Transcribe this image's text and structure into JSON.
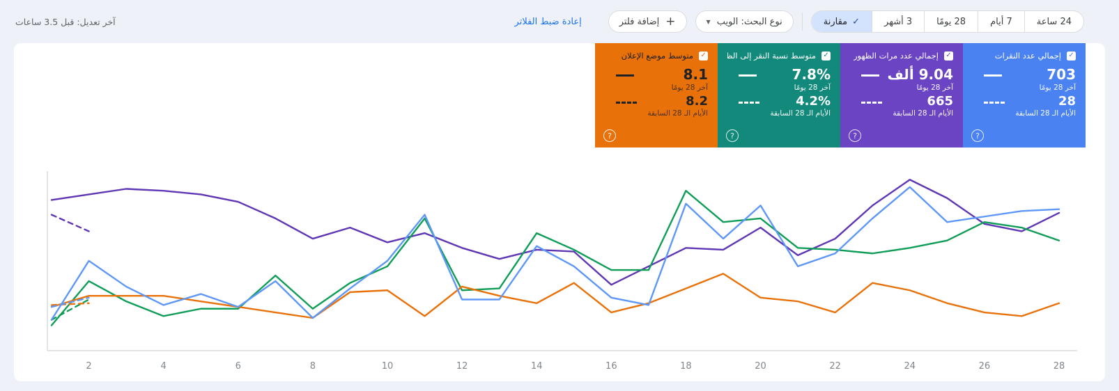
{
  "topbar": {
    "last_modified": "آخر تعديل: قبل 3.5 ساعات",
    "reset_filters_label": "إعادة ضبط الفلاتر",
    "add_filter": {
      "icon": "+",
      "label": "إضافة فلتر"
    },
    "search_type": {
      "label": "نوع البحث: الويب",
      "caret": "▼"
    },
    "date_range_tabs": [
      {
        "label": "24 ساعة",
        "selected": false
      },
      {
        "label": "7 أيام",
        "selected": false
      },
      {
        "label": "28 يومًا",
        "selected": false
      },
      {
        "label": "3 أشهر",
        "selected": false
      },
      {
        "label": "مقارنة",
        "selected": true,
        "check_glyph": "✓"
      }
    ]
  },
  "cards": [
    {
      "metric": "total-clicks",
      "title": "إجمالي عدد النقرات",
      "color": "#4a82f1",
      "checked": true,
      "current": {
        "value": "703",
        "label": "آخر 28 يومًا"
      },
      "previous": {
        "value": "28",
        "label": "الأيام الـ 28 السابقة"
      },
      "help_glyph": "?"
    },
    {
      "metric": "total-impressions",
      "title": "إجمالي عدد مرات الظهور",
      "color": "#6a44c3",
      "checked": true,
      "current": {
        "value": "9.04 ألف",
        "label": "آخر 28 يومًا"
      },
      "previous": {
        "value": "665",
        "label": "الأيام الـ 28 السابقة"
      },
      "help_glyph": "?"
    },
    {
      "metric": "average-ctr",
      "title": "متوسط نسبة النقر إلى الظهور",
      "color": "#12897a",
      "checked": true,
      "current": {
        "value": "7.8%",
        "label": "آخر 28 يومًا"
      },
      "previous": {
        "value": "4.2%",
        "label": "الأيام الـ 28 السابقة"
      },
      "help_glyph": "?"
    },
    {
      "metric": "average-position",
      "title": "متوسط موضع الإعلان",
      "color": "#e8710a",
      "checked": true,
      "dark_text": true,
      "current": {
        "value": "8.1",
        "label": "آخر 28 يومًا"
      },
      "previous": {
        "value": "8.2",
        "label": "الأيام الـ 28 السابقة"
      },
      "help_glyph": "?"
    }
  ],
  "chart_data": {
    "type": "line",
    "days": 28,
    "x_range": [
      1,
      28
    ],
    "x_tick_labels": [
      2,
      4,
      6,
      8,
      10,
      12,
      14,
      16,
      18,
      20,
      22,
      24,
      26,
      28
    ],
    "y_axis": "hidden - no tick labels shown in UI",
    "value_scale": "estimated percent of plot height (0 = bottom axis, 100 = top)",
    "grid": "off",
    "legend": "metric cards act as legend",
    "series": [
      {
        "name": "إجمالي عدد مرات الظهور — آخر 28 يومًا",
        "color": "#5f36b3",
        "style": "solid",
        "values": [
          84,
          87,
          90,
          89,
          87,
          83,
          74,
          63,
          69,
          61,
          66,
          58,
          52,
          57,
          56,
          38,
          48,
          58,
          57,
          69,
          54,
          63,
          81,
          95,
          85,
          71,
          67,
          77
        ]
      },
      {
        "name": "إجمالي عدد مرات الظهور — الأيام الـ 28 السابقة",
        "color": "#5f36b3",
        "style": "dashed",
        "values": [
          76,
          67
        ]
      },
      {
        "name": "متوسط نسبة النقر إلى الظهور — آخر 28 يومًا",
        "color": "#0f9d58",
        "style": "solid",
        "values": [
          16,
          40,
          29,
          21,
          25,
          25,
          43,
          25,
          39,
          48,
          74,
          35,
          36,
          66,
          57,
          46,
          46,
          89,
          72,
          74,
          58,
          57,
          55,
          58,
          62,
          72,
          69,
          62
        ]
      },
      {
        "name": "متوسط نسبة النقر إلى الظهور — الأيام الـ 28 السابقة",
        "color": "#0f9d58",
        "style": "dashed",
        "values": [
          19,
          30
        ]
      },
      {
        "name": "متوسط موضع الإعلان — آخر 28 يومًا",
        "color": "#e8710a",
        "style": "solid",
        "values": [
          26,
          32,
          32,
          32,
          29,
          26,
          23,
          20,
          34,
          35,
          21,
          37,
          32,
          28,
          39,
          23,
          28,
          36,
          44,
          31,
          29,
          23,
          39,
          35,
          28,
          23,
          21,
          28
        ]
      },
      {
        "name": "متوسط موضع الإعلان — الأيام الـ 28 السابقة",
        "color": "#e8710a",
        "style": "dashed",
        "values": [
          27,
          28
        ]
      },
      {
        "name": "إجمالي عدد النقرات — آخر 28 يومًا",
        "color": "#5e97f6",
        "style": "solid",
        "values": [
          19,
          51,
          37,
          27,
          33,
          26,
          40,
          20,
          36,
          51,
          76,
          30,
          30,
          59,
          48,
          31,
          27,
          82,
          63,
          81,
          48,
          55,
          74,
          91,
          72,
          75,
          78,
          79
        ]
      },
      {
        "name": "إجمالي عدد النقرات — الأيام الـ 28 السابقة",
        "color": "#5e97f6",
        "style": "dashed",
        "values": [
          26,
          31
        ]
      }
    ]
  }
}
